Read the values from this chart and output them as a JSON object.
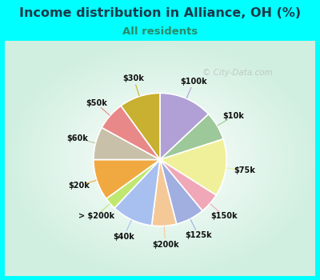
{
  "title": "Income distribution in Alliance, OH (%)",
  "subtitle": "All residents",
  "watermark": "© City-Data.com",
  "bg_color": "#00FFFF",
  "title_color": "#1a3a4a",
  "subtitle_color": "#2a8a6a",
  "labels": [
    "$100k",
    "$10k",
    "$75k",
    "$150k",
    "$125k",
    "$200k",
    "$40k",
    "> $200k",
    "$20k",
    "$60k",
    "$50k",
    "$30k"
  ],
  "values": [
    13,
    7,
    14,
    5,
    7,
    6,
    10,
    3,
    10,
    8,
    7,
    10
  ],
  "colors": [
    "#b0a0d5",
    "#9dc89a",
    "#f0f09a",
    "#f0a8b8",
    "#a0aee0",
    "#f5c898",
    "#a8c0f0",
    "#c0e870",
    "#f0a840",
    "#c8c0a8",
    "#e88888",
    "#c8b030"
  ],
  "title_fontsize": 11.5,
  "subtitle_fontsize": 9.5,
  "label_fontsize": 7,
  "watermark_fontsize": 7.5
}
